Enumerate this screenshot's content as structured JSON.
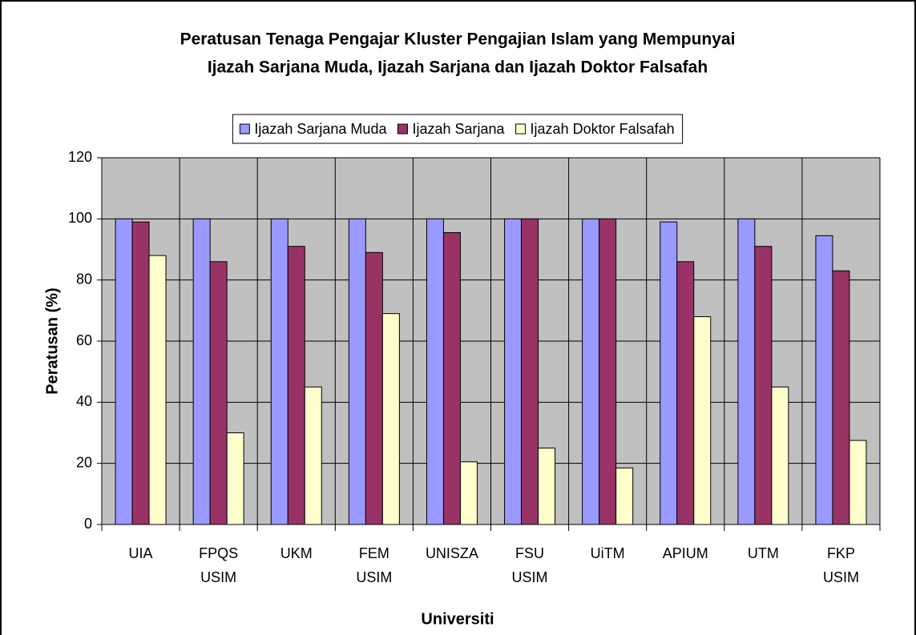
{
  "chart_data": {
    "type": "bar",
    "title": [
      "Peratusan Tenaga Pengajar Kluster Pengajian Islam yang Mempunyai",
      "Ijazah Sarjana Muda, Ijazah Sarjana dan Ijazah Doktor Falsafah"
    ],
    "x_label": "Universiti",
    "y_label": "Peratusan (%)",
    "categories": [
      "UIA",
      "FPQS USIM",
      "UKM",
      "FEM USIM",
      "UNISZA",
      "FSU USIM",
      "UiTM",
      "APIUM",
      "UTM",
      "FKP USIM"
    ],
    "series": [
      {
        "name": "Ijazah Sarjana Muda",
        "color": "#9999ff",
        "values": [
          100,
          100,
          100,
          100,
          100,
          100,
          100,
          99,
          100,
          94.5
        ]
      },
      {
        "name": "Ijazah Sarjana",
        "color": "#993366",
        "values": [
          99,
          86,
          91,
          89,
          95.5,
          100,
          100,
          86,
          91,
          83
        ]
      },
      {
        "name": "Ijazah Doktor Falsafah",
        "color": "#ffffcc",
        "values": [
          88,
          30,
          45,
          69,
          20.5,
          25,
          18.5,
          68,
          45,
          27.5
        ]
      }
    ],
    "ylim": [
      0,
      120
    ],
    "yticks": [
      0,
      20,
      40,
      60,
      80,
      100,
      120
    ],
    "grid": true,
    "legend": "top"
  }
}
